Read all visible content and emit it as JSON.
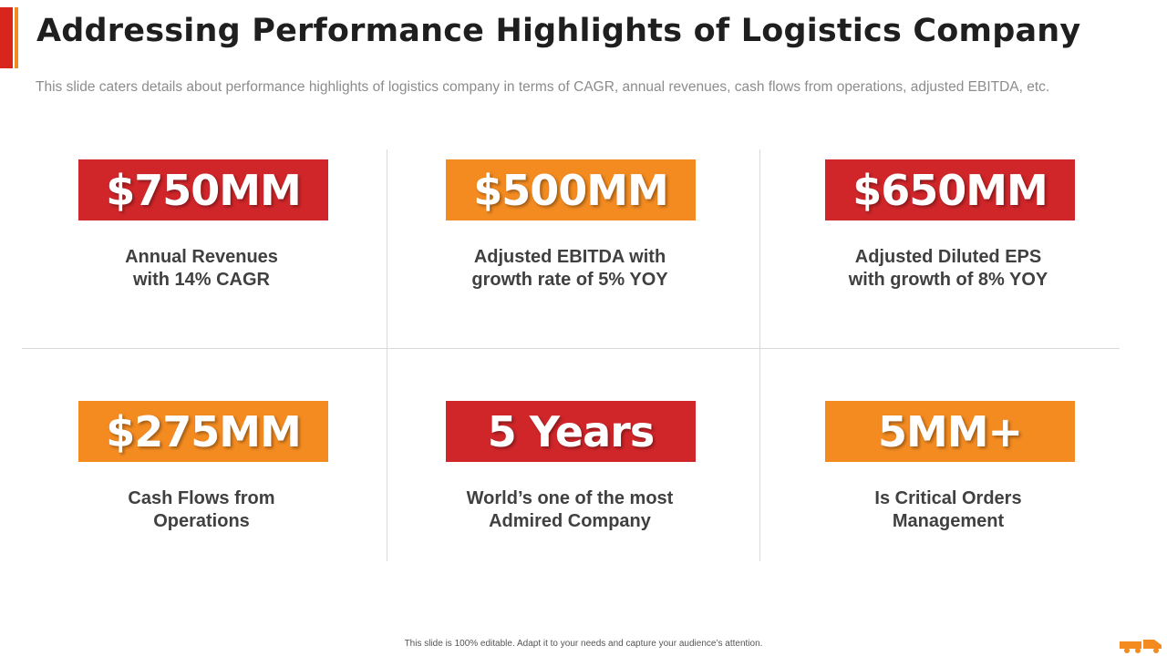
{
  "header": {
    "title": "Addressing Performance Highlights of Logistics Company",
    "subtitle": "This slide caters details about performance highlights of logistics company in terms of CAGR, annual revenues, cash flows from operations, adjusted EBITDA, etc."
  },
  "highlights": [
    {
      "value": "$750MM",
      "label_line1": "Annual Revenues",
      "label_line2": "with 14% CAGR",
      "color": "#d0262a"
    },
    {
      "value": "$500MM",
      "label_line1": "Adjusted EBITDA with",
      "label_line2": "growth rate of 5% YOY",
      "color": "#f38b21"
    },
    {
      "value": "$650MM",
      "label_line1": "Adjusted Diluted EPS",
      "label_line2": "with growth of 8% YOY",
      "color": "#d0262a"
    },
    {
      "value": "$275MM",
      "label_line1": "Cash Flows from",
      "label_line2": "Operations",
      "color": "#f38b21"
    },
    {
      "value": "5 Years",
      "label_line1": "World’s one of the most",
      "label_line2": "Admired Company",
      "color": "#d0262a"
    },
    {
      "value": "5MM+",
      "label_line1": "Is Critical Orders",
      "label_line2": "Management",
      "color": "#f38b21"
    }
  ],
  "footer": {
    "note": "This slide is 100% editable. Adapt it to your needs and capture your audience’s attention.",
    "icon": "truck-icon"
  },
  "colors": {
    "accent_red": "#d9261c",
    "accent_orange": "#f28a1f",
    "title_text": "#1f1f1f",
    "label_text": "#404040"
  }
}
